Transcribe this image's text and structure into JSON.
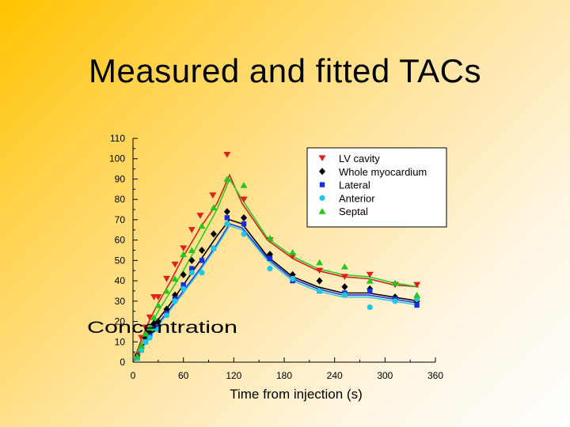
{
  "slide": {
    "title": "Measured and fitted TACs"
  },
  "chart_data": {
    "type": "scatter",
    "title": "",
    "xlabel": "Time from injection (s)",
    "ylabel": "Concentration",
    "xlim": [
      0,
      360
    ],
    "ylim": [
      0,
      110
    ],
    "x_ticks": [
      0,
      60,
      120,
      180,
      240,
      300,
      360
    ],
    "y_ticks": [
      0,
      10,
      20,
      30,
      40,
      50,
      60,
      70,
      80,
      90,
      100,
      110
    ],
    "legend_position": "top-right",
    "series": [
      {
        "name": "LV cavity",
        "color": "#e0201a",
        "line_color": "#c8281e",
        "marker": "triangle-down",
        "points": [
          [
            5,
            3
          ],
          [
            10,
            12
          ],
          [
            15,
            17
          ],
          [
            20,
            22
          ],
          [
            25,
            32
          ],
          [
            30,
            32
          ],
          [
            40,
            41
          ],
          [
            50,
            48
          ],
          [
            60,
            56
          ],
          [
            70,
            65
          ],
          [
            80,
            72
          ],
          [
            95,
            82
          ],
          [
            112,
            102
          ],
          [
            132,
            80
          ],
          [
            163,
            60
          ],
          [
            190,
            52
          ],
          [
            222,
            45
          ],
          [
            252,
            42
          ],
          [
            282,
            43
          ],
          [
            312,
            38
          ],
          [
            338,
            38
          ]
        ],
        "fit": [
          [
            0,
            0
          ],
          [
            10,
            11
          ],
          [
            20,
            21
          ],
          [
            30,
            29
          ],
          [
            45,
            40
          ],
          [
            60,
            52
          ],
          [
            80,
            66
          ],
          [
            100,
            78
          ],
          [
            115,
            92
          ],
          [
            130,
            78
          ],
          [
            160,
            60
          ],
          [
            190,
            51
          ],
          [
            220,
            45
          ],
          [
            250,
            42
          ],
          [
            280,
            41
          ],
          [
            310,
            38
          ],
          [
            340,
            37
          ]
        ]
      },
      {
        "name": "Whole myocardium",
        "color": "#000000",
        "line_color": "#000000",
        "marker": "diamond",
        "points": [
          [
            5,
            3
          ],
          [
            10,
            7
          ],
          [
            15,
            12
          ],
          [
            20,
            15
          ],
          [
            25,
            19
          ],
          [
            30,
            20
          ],
          [
            40,
            26
          ],
          [
            50,
            33
          ],
          [
            60,
            43
          ],
          [
            70,
            50
          ],
          [
            82,
            55
          ],
          [
            96,
            63
          ],
          [
            112,
            74
          ],
          [
            132,
            71
          ],
          [
            163,
            53
          ],
          [
            190,
            43
          ],
          [
            222,
            40
          ],
          [
            252,
            37
          ],
          [
            282,
            36
          ],
          [
            312,
            32
          ],
          [
            338,
            30
          ]
        ],
        "fit": [
          [
            0,
            0
          ],
          [
            10,
            7
          ],
          [
            20,
            14
          ],
          [
            30,
            21
          ],
          [
            45,
            29
          ],
          [
            60,
            38
          ],
          [
            80,
            50
          ],
          [
            100,
            62
          ],
          [
            115,
            70
          ],
          [
            130,
            68
          ],
          [
            160,
            52
          ],
          [
            190,
            42
          ],
          [
            220,
            37
          ],
          [
            250,
            34
          ],
          [
            280,
            34
          ],
          [
            310,
            32
          ],
          [
            340,
            30
          ]
        ]
      },
      {
        "name": "Lateral",
        "color": "#1530e0",
        "line_color": "#1a3ae6",
        "marker": "square",
        "points": [
          [
            5,
            2
          ],
          [
            10,
            6
          ],
          [
            15,
            10
          ],
          [
            20,
            13
          ],
          [
            25,
            17
          ],
          [
            30,
            17
          ],
          [
            40,
            24
          ],
          [
            50,
            31
          ],
          [
            60,
            38
          ],
          [
            70,
            46
          ],
          [
            82,
            50
          ],
          [
            96,
            56
          ],
          [
            112,
            71
          ],
          [
            132,
            68
          ],
          [
            163,
            51
          ],
          [
            190,
            40
          ],
          [
            222,
            35
          ],
          [
            252,
            34
          ],
          [
            282,
            35
          ],
          [
            312,
            31
          ],
          [
            338,
            28
          ]
        ],
        "fit": [
          [
            0,
            0
          ],
          [
            10,
            6
          ],
          [
            20,
            13
          ],
          [
            30,
            19
          ],
          [
            45,
            27
          ],
          [
            60,
            35
          ],
          [
            80,
            46
          ],
          [
            100,
            58
          ],
          [
            115,
            68
          ],
          [
            130,
            66
          ],
          [
            160,
            51
          ],
          [
            190,
            41
          ],
          [
            220,
            36
          ],
          [
            250,
            33
          ],
          [
            280,
            33
          ],
          [
            310,
            31
          ],
          [
            340,
            29
          ]
        ]
      },
      {
        "name": "Anterior",
        "color": "#20c8e6",
        "line_color": "#38c8e6",
        "marker": "circle",
        "points": [
          [
            5,
            2
          ],
          [
            10,
            6
          ],
          [
            15,
            10
          ],
          [
            20,
            12
          ],
          [
            25,
            16
          ],
          [
            30,
            16
          ],
          [
            40,
            23
          ],
          [
            50,
            30
          ],
          [
            60,
            36
          ],
          [
            70,
            44
          ],
          [
            82,
            44
          ],
          [
            96,
            56
          ],
          [
            112,
            68
          ],
          [
            132,
            63
          ],
          [
            163,
            46
          ],
          [
            190,
            41
          ],
          [
            222,
            35
          ],
          [
            252,
            33
          ],
          [
            282,
            27
          ],
          [
            312,
            30
          ],
          [
            338,
            31
          ]
        ],
        "fit": [
          [
            0,
            0
          ],
          [
            10,
            6
          ],
          [
            20,
            12
          ],
          [
            30,
            18
          ],
          [
            45,
            26
          ],
          [
            60,
            34
          ],
          [
            80,
            45
          ],
          [
            100,
            57
          ],
          [
            115,
            67
          ],
          [
            130,
            65
          ],
          [
            160,
            50
          ],
          [
            190,
            40
          ],
          [
            220,
            35
          ],
          [
            250,
            32
          ],
          [
            280,
            32
          ],
          [
            310,
            30
          ],
          [
            340,
            28
          ]
        ]
      },
      {
        "name": "Septal",
        "color": "#22c81e",
        "line_color": "#2ecc22",
        "marker": "triangle-up",
        "points": [
          [
            5,
            3
          ],
          [
            10,
            8
          ],
          [
            15,
            14
          ],
          [
            20,
            17
          ],
          [
            25,
            22
          ],
          [
            30,
            28
          ],
          [
            40,
            35
          ],
          [
            50,
            41
          ],
          [
            60,
            53
          ],
          [
            70,
            55
          ],
          [
            82,
            67
          ],
          [
            96,
            76
          ],
          [
            112,
            90
          ],
          [
            132,
            87
          ],
          [
            163,
            61
          ],
          [
            190,
            54
          ],
          [
            222,
            49
          ],
          [
            252,
            47
          ],
          [
            282,
            40
          ],
          [
            312,
            39
          ],
          [
            338,
            33
          ]
        ],
        "fit": [
          [
            0,
            0
          ],
          [
            10,
            9
          ],
          [
            20,
            17
          ],
          [
            30,
            25
          ],
          [
            45,
            35
          ],
          [
            60,
            45
          ],
          [
            80,
            60
          ],
          [
            100,
            75
          ],
          [
            115,
            90
          ],
          [
            130,
            80
          ],
          [
            160,
            61
          ],
          [
            190,
            52
          ],
          [
            220,
            46
          ],
          [
            250,
            43
          ],
          [
            280,
            42
          ],
          [
            310,
            39
          ],
          [
            340,
            37
          ]
        ]
      }
    ]
  }
}
